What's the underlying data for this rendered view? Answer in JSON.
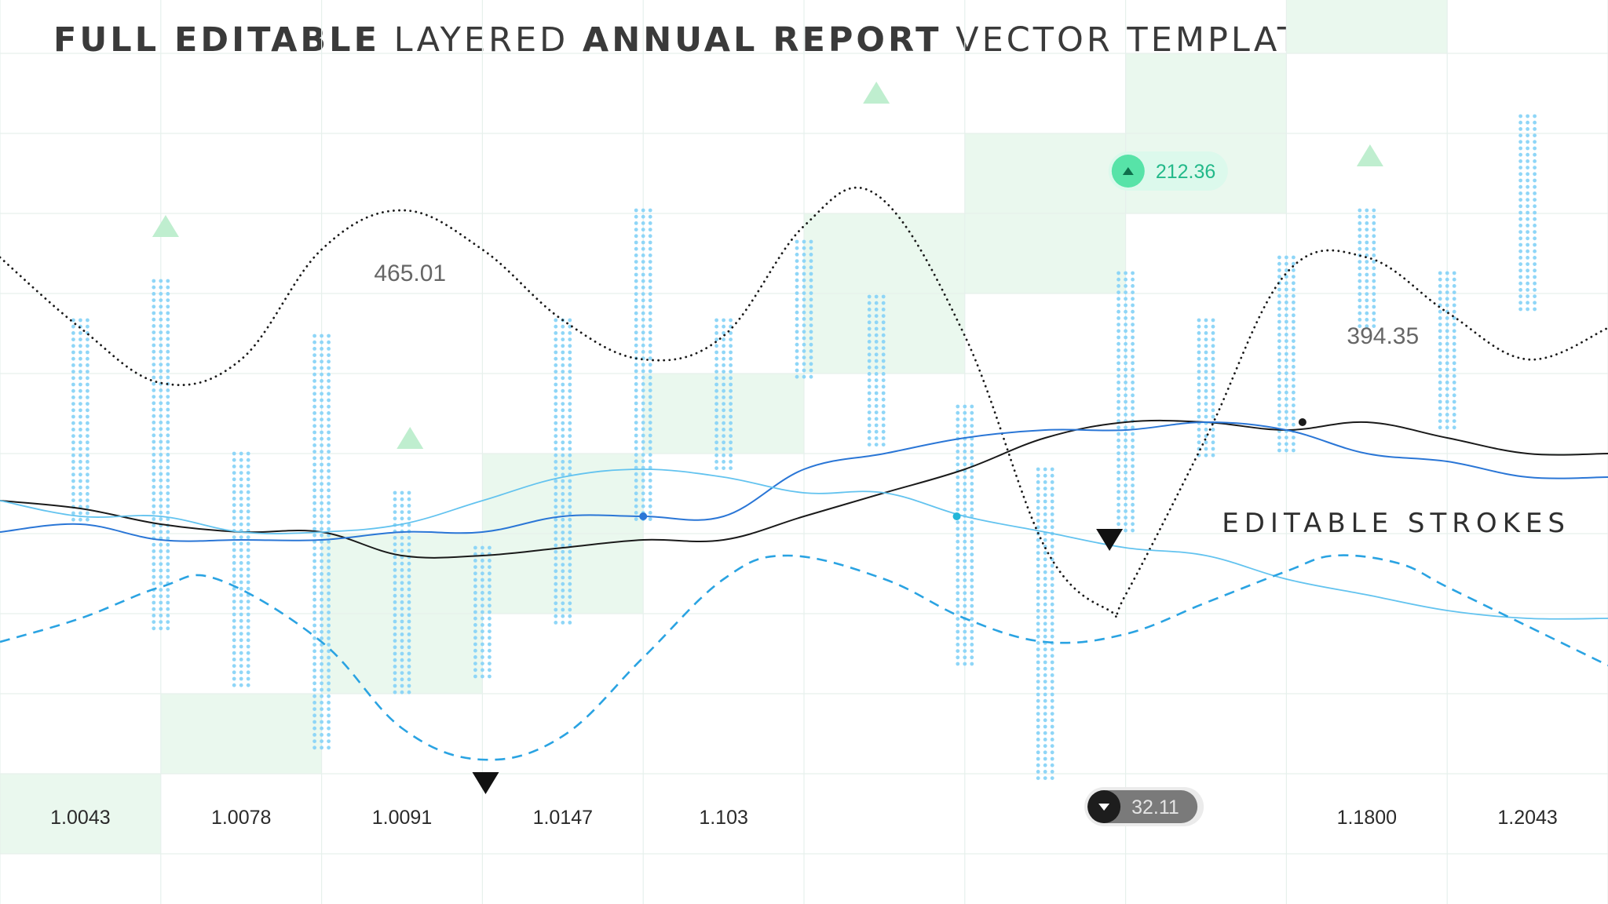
{
  "title": {
    "part1": "FULL EDITABLE",
    "part2": "LAYERED",
    "part3": "ANNUAL REPORT",
    "part4": "VECTOR TEMPLATE"
  },
  "colors": {
    "grid": "#e6f0ec",
    "cellFill": "#eaf8ee",
    "barDots": "#8fd6f7",
    "upMarker": "#bfeecf",
    "seriesBlack": "#1a1a1a",
    "seriesBlue": "#2a76d6",
    "seriesLight": "#63c3ef",
    "seriesDashed": "#2aa3e2",
    "badgeUpFill": "#dcf9ec",
    "badgeUpDot": "#57e3a8",
    "badgeUpText": "#23b98a",
    "badgeDownFill": "#7a7a7a",
    "badgeDownText": "#e4e4e4"
  },
  "chart_data": {
    "type": "line",
    "title": "FULL EDITABLE LAYERED ANNUAL REPORT VECTOR TEMPLATE",
    "x_labels": [
      "1.0043",
      "1.0078",
      "1.0091",
      "1.0147",
      "1.103",
      "1.1800",
      "1.2043"
    ],
    "x_label_slots": [
      0.5,
      1.5,
      2.5,
      3.5,
      4.5,
      8.5,
      9.5
    ],
    "xlim": [
      0,
      10
    ],
    "ylim": [
      0,
      100
    ],
    "grid": true,
    "annotation_label": "EDITABLE STROKES",
    "callouts": [
      {
        "label": "465.01",
        "x": 2.55,
        "y": 73
      },
      {
        "label": "394.35",
        "x": 8.6,
        "y": 65
      }
    ],
    "badges": [
      {
        "label": "212.36",
        "direction": "up",
        "x": 7.05,
        "y": 87
      },
      {
        "label": "32.11",
        "direction": "down",
        "x": 6.9,
        "y": 6
      }
    ],
    "markers_up": [
      {
        "x": 1.03,
        "y": 80
      },
      {
        "x": 2.55,
        "y": 53
      },
      {
        "x": 5.45,
        "y": 97
      },
      {
        "x": 8.52,
        "y": 89
      }
    ],
    "markers_down": [
      {
        "x": 3.02,
        "y": 9
      },
      {
        "x": 6.9,
        "y": 40
      }
    ],
    "highlight_cells": [
      {
        "col": 0,
        "row": 0
      },
      {
        "col": 1,
        "row": 1
      },
      {
        "col": 2,
        "row": 2
      },
      {
        "col": 2,
        "row": 3
      },
      {
        "col": 3,
        "row": 3
      },
      {
        "col": 3,
        "row": 4
      },
      {
        "col": 4,
        "row": 5
      },
      {
        "col": 5,
        "row": 6
      },
      {
        "col": 5,
        "row": 7
      },
      {
        "col": 6,
        "row": 7
      },
      {
        "col": 6,
        "row": 8
      },
      {
        "col": 7,
        "row": 8
      },
      {
        "col": 7,
        "row": 9
      },
      {
        "col": 8,
        "row": 10
      },
      {
        "col": 9,
        "row": 11
      }
    ],
    "dot_bars": [
      {
        "x": 0.5,
        "low": 42,
        "high": 68
      },
      {
        "x": 1.0,
        "low": 28,
        "high": 73
      },
      {
        "x": 1.5,
        "low": 21,
        "high": 51
      },
      {
        "x": 2.0,
        "low": 13,
        "high": 66
      },
      {
        "x": 2.5,
        "low": 20,
        "high": 46
      },
      {
        "x": 3.0,
        "low": 22,
        "high": 39
      },
      {
        "x": 3.5,
        "low": 29,
        "high": 68
      },
      {
        "x": 4.0,
        "low": 42,
        "high": 82
      },
      {
        "x": 4.5,
        "low": 49,
        "high": 68
      },
      {
        "x": 5.0,
        "low": 60,
        "high": 78
      },
      {
        "x": 5.45,
        "low": 52,
        "high": 71
      },
      {
        "x": 6.0,
        "low": 24,
        "high": 57
      },
      {
        "x": 6.5,
        "low": 9,
        "high": 49
      },
      {
        "x": 7.0,
        "low": 41,
        "high": 74
      },
      {
        "x": 7.5,
        "low": 50,
        "high": 68
      },
      {
        "x": 8.0,
        "low": 51,
        "high": 76
      },
      {
        "x": 8.5,
        "low": 67,
        "high": 82
      },
      {
        "x": 9.0,
        "low": 54,
        "high": 74
      },
      {
        "x": 9.5,
        "low": 69,
        "high": 94
      }
    ],
    "series": [
      {
        "name": "dotted",
        "style": "dotted",
        "x": [
          0,
          0.5,
          1.0,
          1.5,
          2.0,
          2.5,
          3.0,
          3.5,
          4.0,
          4.5,
          5.0,
          5.45,
          6.0,
          6.5,
          6.9,
          7.0,
          7.5,
          8.0,
          8.5,
          9.0,
          9.5,
          10.0
        ],
        "values": [
          76,
          67,
          60,
          63,
          77,
          82,
          77,
          68,
          63,
          66,
          80,
          84,
          66,
          39,
          31,
          33,
          53,
          74,
          76,
          69,
          63,
          67
        ]
      },
      {
        "name": "black",
        "style": "solid",
        "x": [
          0,
          0.5,
          1.0,
          1.5,
          2.0,
          2.5,
          3.0,
          3.5,
          4.0,
          4.5,
          5.0,
          5.5,
          6.0,
          6.5,
          7.0,
          7.5,
          8.0,
          8.5,
          9.0,
          9.5,
          10.0
        ],
        "values": [
          45,
          44,
          42,
          41,
          41,
          38,
          38,
          39,
          40,
          40,
          43,
          46,
          49,
          53,
          55,
          55,
          54,
          55,
          53,
          51,
          51
        ]
      },
      {
        "name": "blue",
        "style": "solid",
        "x": [
          0,
          0.5,
          1.0,
          1.5,
          2.0,
          2.5,
          3.0,
          3.5,
          4.0,
          4.5,
          5.0,
          5.5,
          6.0,
          6.5,
          7.0,
          7.5,
          8.0,
          8.5,
          9.0,
          9.5,
          10.0
        ],
        "values": [
          41,
          42,
          40,
          40,
          40,
          41,
          41,
          43,
          43,
          43,
          49,
          51,
          53,
          54,
          54,
          55,
          54,
          51,
          50,
          48,
          48
        ]
      },
      {
        "name": "light-blue",
        "style": "solid",
        "x": [
          0,
          0.5,
          1.0,
          1.5,
          2.0,
          2.5,
          3.0,
          3.5,
          4.0,
          4.5,
          5.0,
          5.5,
          6.0,
          6.5,
          7.0,
          7.5,
          8.0,
          8.5,
          9.0,
          9.5,
          10.0
        ],
        "values": [
          45,
          43,
          43,
          41,
          41,
          42,
          45,
          48,
          49,
          48,
          46,
          46,
          43,
          41,
          39,
          38,
          35,
          33,
          31,
          30,
          30
        ]
      },
      {
        "name": "dashed",
        "style": "dashed",
        "x": [
          0,
          0.5,
          1.0,
          1.35,
          2.0,
          2.5,
          3.0,
          3.5,
          4.0,
          4.5,
          4.9,
          5.5,
          6.0,
          6.5,
          7.0,
          7.5,
          8.0,
          8.3,
          8.7,
          9.0,
          9.5,
          10.0
        ],
        "values": [
          27,
          30,
          34,
          35,
          27,
          16,
          12,
          15,
          25,
          35,
          38,
          35,
          30,
          27,
          28,
          32,
          36,
          38,
          37,
          34,
          29,
          24
        ]
      }
    ],
    "series_points": [
      {
        "series": "blue",
        "x": 4.0,
        "y": 43
      },
      {
        "series": "light-blue",
        "x": 5.95,
        "y": 43
      },
      {
        "series": "black",
        "x": 8.1,
        "y": 55
      }
    ]
  }
}
